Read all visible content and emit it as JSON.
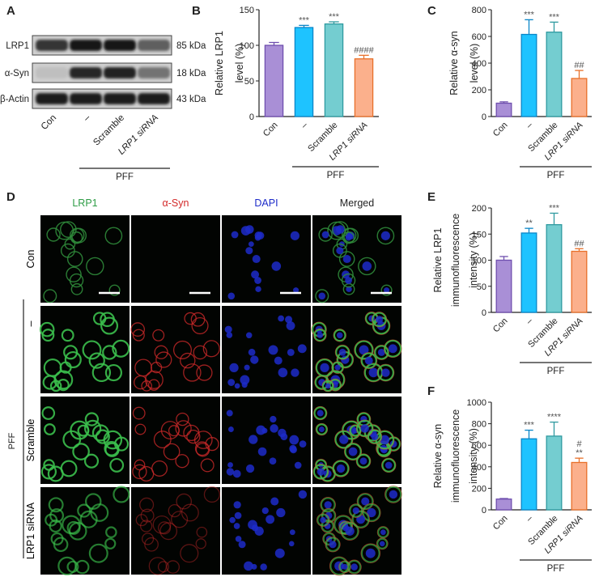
{
  "panels": {
    "A": "A",
    "B": "B",
    "C": "C",
    "D": "D",
    "E": "E",
    "F": "F"
  },
  "colors": {
    "con": "#a98fd6",
    "con_stroke": "#6f4fae",
    "pff": "#1ec3ff",
    "pff_stroke": "#0a86c8",
    "scramble": "#74cdd0",
    "scramble_stroke": "#2f9aa0",
    "sirna": "#fbb08c",
    "sirna_stroke": "#e8702a",
    "green": "#2e9c46",
    "red": "#d32828",
    "blue": "#1d2bc9"
  },
  "western": {
    "bands": [
      {
        "name": "LRP1",
        "size": "85 kDa",
        "intensity": [
          0.78,
          0.95,
          0.95,
          0.55
        ]
      },
      {
        "name": "α-Syn",
        "size": "18 kDa",
        "intensity": [
          0.05,
          0.85,
          0.88,
          0.45
        ]
      },
      {
        "name": "β-Actin",
        "size": "43 kDa",
        "intensity": [
          0.9,
          0.9,
          0.9,
          0.9
        ]
      }
    ],
    "lanes": [
      "Con",
      "–",
      "Scramble",
      "LRP1 siRNA"
    ],
    "group_label": "PFF"
  },
  "micro": {
    "headers": [
      "LRP1",
      "α-Syn",
      "DAPI",
      "Merged"
    ],
    "rows": [
      "Con",
      "–",
      "Scramble",
      "LRP1 siRNA"
    ],
    "group_label": "PFF"
  },
  "chart_data": [
    {
      "id": "B",
      "type": "bar",
      "categories": [
        "Con",
        "–",
        "Scramble",
        "LRP1 siRNA"
      ],
      "values": [
        100,
        125,
        130,
        81
      ],
      "errors": [
        4,
        3,
        3,
        5
      ],
      "significance": [
        "",
        "***",
        "***",
        "####"
      ],
      "ylabel": [
        "Relative LRP1",
        "level (%)"
      ],
      "ylim": [
        0,
        150
      ],
      "yticks": [
        0,
        50,
        100,
        150
      ],
      "group_label": "PFF"
    },
    {
      "id": "C",
      "type": "bar",
      "categories": [
        "Con",
        "–",
        "Scramble",
        "LRP1 siRNA"
      ],
      "values": [
        100,
        615,
        632,
        285
      ],
      "errors": [
        10,
        110,
        75,
        60
      ],
      "significance": [
        "",
        "***",
        "***",
        "##"
      ],
      "ylabel": [
        "Relative α-syn",
        "level (%)"
      ],
      "ylim": [
        0,
        800
      ],
      "yticks": [
        0,
        200,
        400,
        600,
        800
      ],
      "group_label": "PFF"
    },
    {
      "id": "E",
      "type": "bar",
      "categories": [
        "Con",
        "–",
        "Scramble",
        "LRP1 siRNA"
      ],
      "values": [
        100,
        152,
        168,
        117
      ],
      "errors": [
        7,
        9,
        22,
        5
      ],
      "significance": [
        "",
        "**",
        "***",
        "##"
      ],
      "ylabel": [
        "Relative LRP1",
        "immunofluorescence",
        "intensity (%)"
      ],
      "ylim": [
        0,
        200
      ],
      "yticks": [
        0,
        50,
        100,
        150,
        200
      ],
      "group_label": "PFF"
    },
    {
      "id": "F",
      "type": "bar",
      "categories": [
        "Con",
        "–",
        "Scramble",
        "LRP1 siRNA"
      ],
      "values": [
        100,
        660,
        685,
        440
      ],
      "errors": [
        5,
        80,
        130,
        40
      ],
      "significance": [
        "",
        "***",
        "****",
        "**"
      ],
      "significance_extra": [
        "",
        "",
        "",
        "#"
      ],
      "ylabel": [
        "Relative α-syn",
        "immunofluorescence",
        "intensity (%)"
      ],
      "ylim": [
        0,
        1000
      ],
      "yticks": [
        0,
        200,
        400,
        600,
        800,
        1000
      ],
      "group_label": "PFF"
    }
  ]
}
